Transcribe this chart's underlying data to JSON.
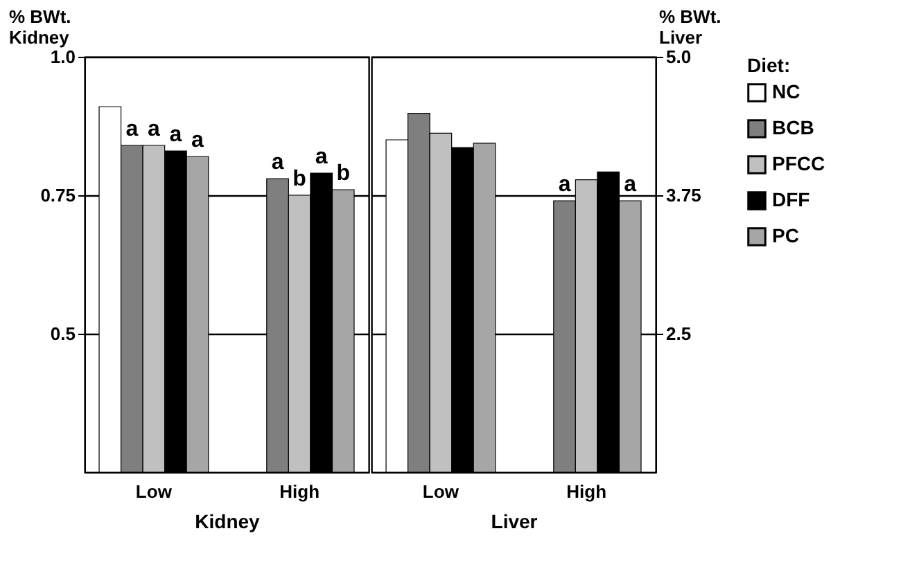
{
  "chart_data": [
    {
      "type": "bar",
      "categories": [
        "Low",
        "High"
      ],
      "xlabel": "Kidney",
      "ylabel": "% BWt.\nKidney",
      "ylim": [
        0.25,
        1.0
      ],
      "yticks": [
        0.5,
        0.75,
        {
          "value": 1.0,
          "label": "1.0"
        }
      ],
      "grid": "y",
      "legend": "right",
      "series": [
        {
          "name": "NC",
          "color": "#ffffff",
          "values": [
            0.91,
            null
          ]
        },
        {
          "name": "BCB",
          "color": "#7f7f7f",
          "values": [
            0.84,
            0.78
          ],
          "value_labels": [
            "a",
            "a"
          ]
        },
        {
          "name": "PFCC",
          "color": "#c0c0c0",
          "values": [
            0.84,
            0.75
          ],
          "value_labels": [
            "a",
            "b"
          ]
        },
        {
          "name": "DFF",
          "color": "#000000",
          "values": [
            0.83,
            0.79
          ],
          "value_labels": [
            "a",
            "a"
          ]
        },
        {
          "name": "PC",
          "color": "#a6a6a6",
          "values": [
            0.82,
            0.76
          ],
          "value_labels": [
            "a",
            "b"
          ]
        }
      ]
    },
    {
      "type": "bar",
      "categories": [
        "Low",
        "High"
      ],
      "xlabel": "Liver",
      "y2label": "% BWt.\nLiver",
      "y2lim": [
        1.25,
        5.0
      ],
      "y2ticks": [
        2.5,
        3.75,
        {
          "value": 5.0,
          "label": "5.0"
        }
      ],
      "grid": "y",
      "legend": "right",
      "legend_title": "Diet:",
      "series": [
        {
          "name": "NC",
          "color": "#ffffff",
          "axis": "y2",
          "values": [
            4.25,
            null
          ]
        },
        {
          "name": "BCB",
          "color": "#7f7f7f",
          "axis": "y2",
          "values": [
            4.49,
            3.7
          ],
          "value_labels": [
            null,
            "a"
          ]
        },
        {
          "name": "PFCC",
          "color": "#c0c0c0",
          "axis": "y2",
          "values": [
            4.31,
            3.89
          ]
        },
        {
          "name": "DFF",
          "color": "#000000",
          "axis": "y2",
          "values": [
            4.18,
            3.96
          ]
        },
        {
          "name": "PC",
          "color": "#a6a6a6",
          "axis": "y2",
          "values": [
            4.22,
            3.7
          ],
          "value_labels": [
            null,
            "a"
          ]
        }
      ]
    }
  ]
}
